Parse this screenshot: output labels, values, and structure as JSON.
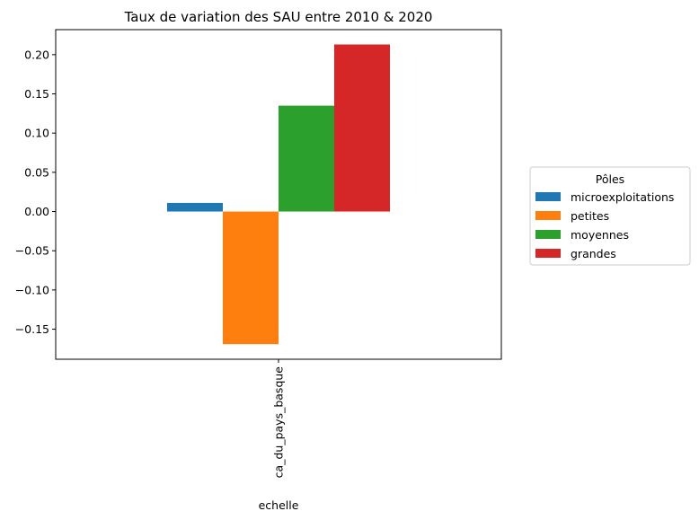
{
  "chart_data": {
    "type": "bar",
    "title": "Taux de variation des SAU entre 2010 & 2020",
    "xlabel": "echelle",
    "ylabel": "",
    "categories": [
      "ca_du_pays_basque"
    ],
    "series": [
      {
        "name": "microexploitations",
        "values": [
          0.011
        ],
        "color": "#1f77b4"
      },
      {
        "name": "petites",
        "values": [
          -0.169
        ],
        "color": "#ff7f0e"
      },
      {
        "name": "moyennes",
        "values": [
          0.135
        ],
        "color": "#2ca02c"
      },
      {
        "name": "grandes",
        "values": [
          0.213
        ],
        "color": "#d62728"
      }
    ],
    "ylim": [
      -0.1883,
      0.2319
    ],
    "yticks": [
      -0.15,
      -0.1,
      -0.05,
      0.0,
      0.05,
      0.1,
      0.15,
      0.2
    ],
    "ytick_labels": [
      "−0.15",
      "−0.10",
      "−0.05",
      "0.00",
      "0.05",
      "0.10",
      "0.15",
      "0.20"
    ],
    "grid": false,
    "legend": {
      "title": "Pôles",
      "placement": "outside-right"
    }
  }
}
